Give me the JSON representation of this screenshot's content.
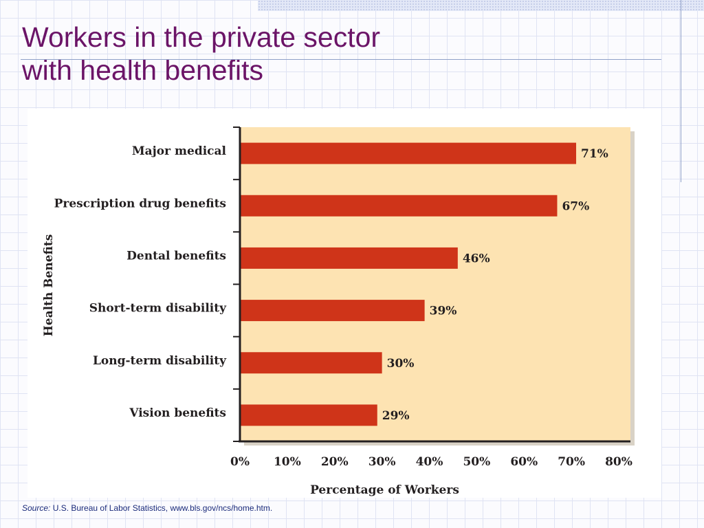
{
  "slide": {
    "title_line1": "Workers in the private sector",
    "title_line2": "with health benefits",
    "source_label": "Source:",
    "source_text": "U.S. Bureau of Labor Statistics, www.bls.gov/ncs/home.htm."
  },
  "colors": {
    "title": "#6b1467",
    "bar": "#cf3419",
    "plot_bg": "#fde3b2",
    "source_text": "#1a2a7a"
  },
  "chart_data": {
    "type": "bar",
    "orientation": "horizontal",
    "categories": [
      "Major medical",
      "Prescription drug benefits",
      "Dental benefits",
      "Short-term disability",
      "Long-term disability",
      "Vision benefits"
    ],
    "values": [
      71,
      67,
      46,
      39,
      30,
      29
    ],
    "data_labels": [
      "71%",
      "67%",
      "46%",
      "39%",
      "30%",
      "29%"
    ],
    "xlabel": "Percentage of Workers",
    "ylabel": "Health Benefits",
    "xlim": [
      0,
      80
    ],
    "xticks": [
      0,
      10,
      20,
      30,
      40,
      50,
      60,
      70,
      80
    ],
    "xtick_labels": [
      "0%",
      "10%",
      "20%",
      "30%",
      "40%",
      "50%",
      "60%",
      "70%",
      "80%"
    ],
    "grid": false
  }
}
